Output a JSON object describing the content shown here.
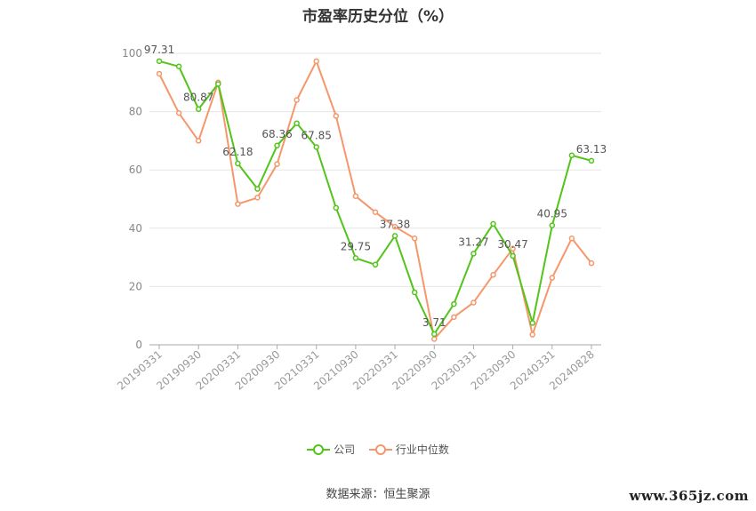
{
  "chart_data": {
    "type": "line",
    "title": "市盈率历史分位（%）",
    "xlabel": "",
    "ylabel": "",
    "ylim": [
      0,
      100
    ],
    "yticks": [
      0,
      20,
      40,
      60,
      80,
      100
    ],
    "grid": true,
    "legend_position": "bottom",
    "x": [
      "20190331",
      "20190630",
      "20190930",
      "20191231",
      "20200331",
      "20200630",
      "20200930",
      "20201231",
      "20210331",
      "20210630",
      "20210930",
      "20211231",
      "20220331",
      "20220630",
      "20220930",
      "20221231",
      "20230331",
      "20230630",
      "20230930",
      "20231231",
      "20240331",
      "20240630",
      "20240828"
    ],
    "xticks_shown": [
      "20190331",
      "20190930",
      "20200331",
      "20200930",
      "20210331",
      "20210930",
      "20220331",
      "20220930",
      "20230331",
      "20230930",
      "20240331",
      "20240828"
    ],
    "series": [
      {
        "name": "公司",
        "color": "#52c41a",
        "values": [
          97.31,
          95.5,
          80.87,
          89.5,
          62.18,
          53.5,
          68.36,
          76.0,
          67.85,
          47.0,
          29.75,
          27.5,
          37.38,
          18.0,
          3.71,
          14.0,
          31.27,
          41.5,
          30.47,
          7.5,
          40.95,
          65.0,
          63.13
        ],
        "labels": {
          "0": "97.31",
          "2": "80.87",
          "4": "62.18",
          "6": "68.36",
          "8": "67.85",
          "10": "29.75",
          "12": "37.38",
          "14": "3.71",
          "16": "31.27",
          "18": "30.47",
          "20": "40.95",
          "22": "63.13"
        }
      },
      {
        "name": "行业中位数",
        "color": "#f5976b",
        "values": [
          93.0,
          79.5,
          70.0,
          90.0,
          48.3,
          50.5,
          62.0,
          84.0,
          97.3,
          78.5,
          51.0,
          45.5,
          40.5,
          36.5,
          2.0,
          9.5,
          14.5,
          24.0,
          33.0,
          3.5,
          23.0,
          36.5,
          28.0
        ]
      }
    ],
    "source_note": "数据来源：恒生聚源"
  },
  "watermark": "www.365jz.com"
}
